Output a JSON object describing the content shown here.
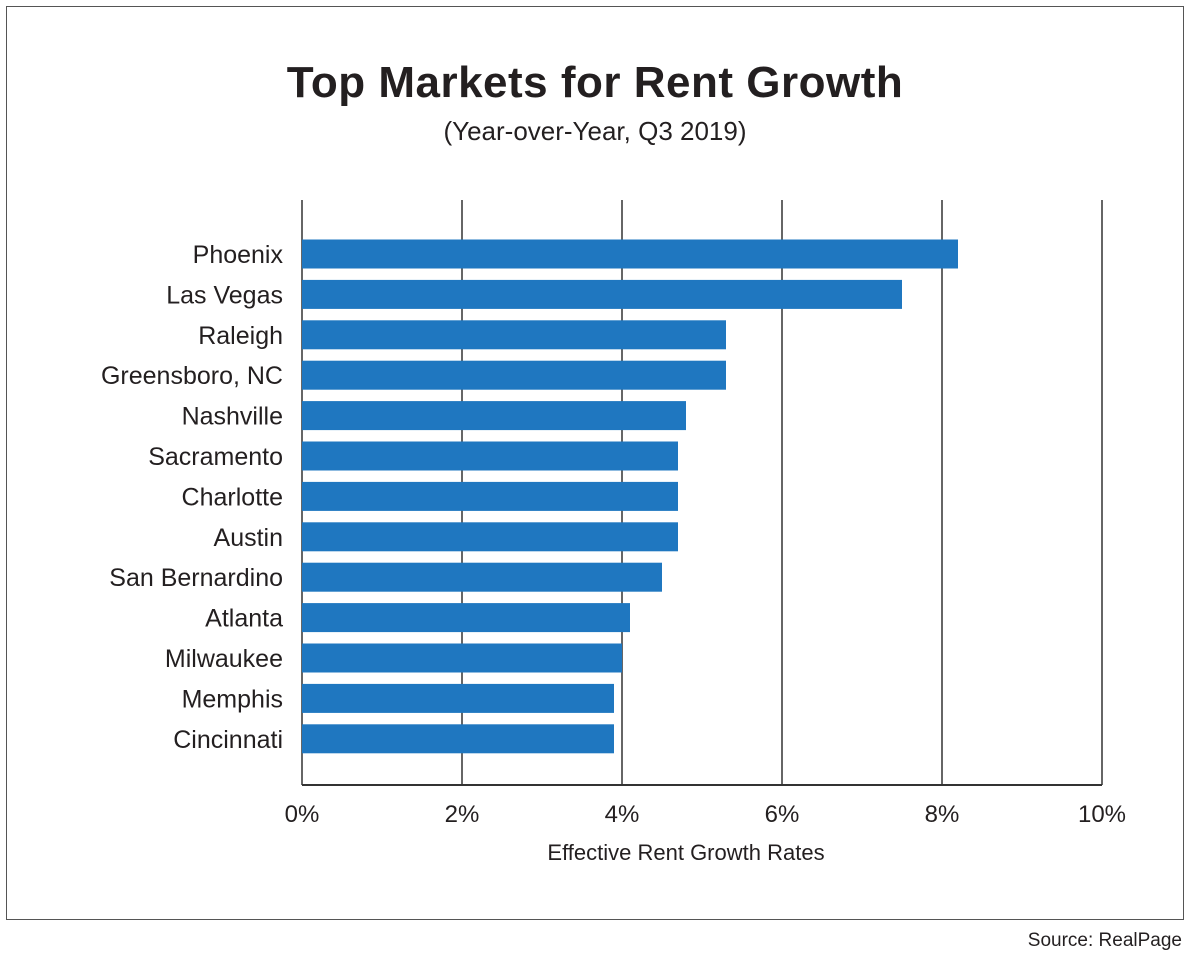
{
  "chart_data": {
    "type": "bar",
    "orientation": "horizontal",
    "title": "Top Markets for Rent Growth",
    "subtitle": "(Year-over-Year, Q3 2019)",
    "xlabel": "Effective Rent Growth Rates",
    "ylabel": "",
    "xlim": [
      0,
      10
    ],
    "xticks": [
      0,
      2,
      4,
      6,
      8,
      10
    ],
    "tick_suffix": "%",
    "grid": "vertical",
    "categories": [
      "Phoenix",
      "Las Vegas",
      "Raleigh",
      "Greensboro, NC",
      "Nashville",
      "Sacramento",
      "Charlotte",
      "Austin",
      "San Bernardino",
      "Atlanta",
      "Milwaukee",
      "Memphis",
      "Cincinnati"
    ],
    "values": [
      8.2,
      7.5,
      5.3,
      5.3,
      4.8,
      4.7,
      4.7,
      4.7,
      4.5,
      4.1,
      4.0,
      3.9,
      3.9
    ],
    "bar_color": "#1f77c0",
    "grid_color": "#333333"
  },
  "source": "Source: RealPage"
}
